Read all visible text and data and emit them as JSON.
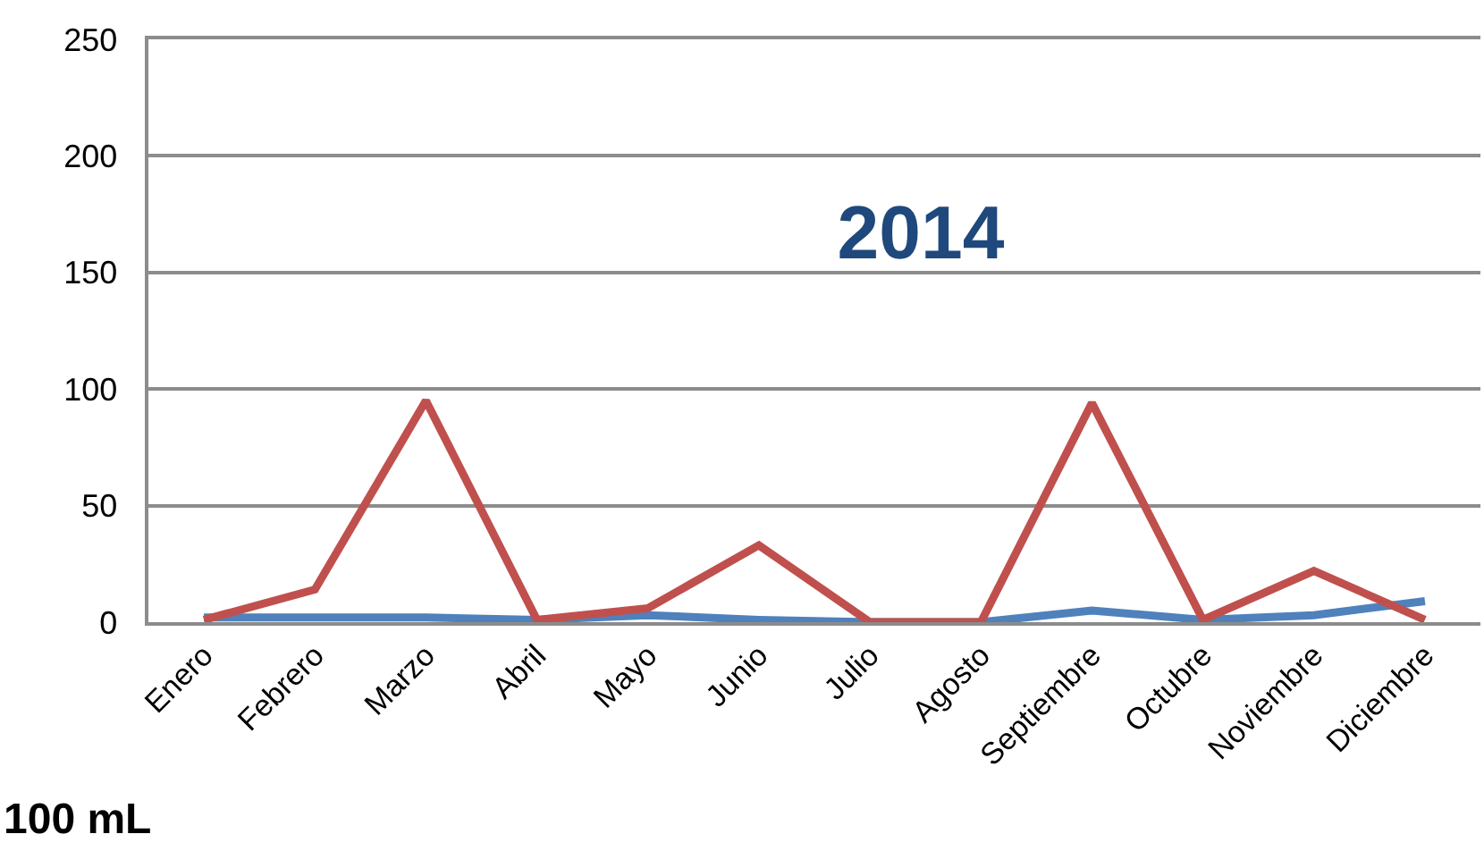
{
  "chart_data": {
    "type": "line",
    "title": "2014",
    "annotations": [
      "100 mL"
    ],
    "categories": [
      "Enero",
      "Febrero",
      "Marzo",
      "Abril",
      "Mayo",
      "Junio",
      "Julio",
      "Agosto",
      "Septiembre",
      "Octubre",
      "Noviembre",
      "Diciembre"
    ],
    "series": [
      {
        "color": "#4f81bd",
        "values": [
          2,
          2,
          2,
          1,
          3,
          1,
          0,
          0,
          5,
          1,
          3,
          9
        ]
      },
      {
        "color": "#c0504d",
        "values": [
          1,
          14,
          95,
          1,
          6,
          33,
          0,
          0,
          94,
          1,
          22,
          1
        ]
      }
    ],
    "ylim": [
      0,
      250
    ],
    "yticks": [
      0,
      50,
      100,
      150,
      200,
      250
    ],
    "grid": "y",
    "marker": "none",
    "line_style": "solid"
  }
}
